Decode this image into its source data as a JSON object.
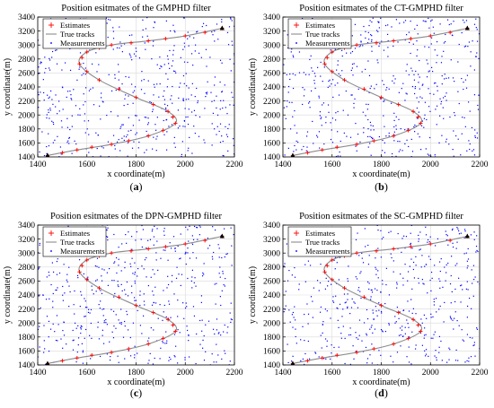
{
  "figure": {
    "panels": [
      {
        "title": "Position esitmates of the GMPHD filter",
        "caption_letter": "a"
      },
      {
        "title": "Position esitmates of the CT-GMPHD filter",
        "caption_letter": "b"
      },
      {
        "title": "Position esitmates of the DPN-GMPHD filter",
        "caption_letter": "c"
      },
      {
        "title": "Position esitmates of the SC-GMPHD filter",
        "caption_letter": "d"
      }
    ]
  },
  "colors": {
    "estimates": "#ff0000",
    "true_tracks": "#8c8c8c",
    "measurements": "#0000ff",
    "track_start_marker": "#000000"
  },
  "chart_data": [
    {
      "type": "scatter",
      "title": "Position esitmates of the GMPHD filter",
      "xlabel": "x coordinate(m)",
      "ylabel": "y coordinate(m)",
      "xlim": [
        1400,
        2200
      ],
      "ylim": [
        1400,
        3400
      ],
      "xticks": [
        1400,
        1600,
        1800,
        2000,
        2200
      ],
      "yticks": [
        1400,
        1600,
        1800,
        2000,
        2200,
        2400,
        2600,
        2800,
        3000,
        3200,
        3400
      ],
      "grid": true,
      "legend": {
        "placement": "top-left",
        "entries": [
          "Estimates",
          "True tracks",
          "Measurements"
        ]
      },
      "series": [
        {
          "name": "True tracks",
          "style": "line",
          "x": [
            1440,
            1560,
            1700,
            1850,
            1960,
            1930,
            1800,
            1650,
            1570,
            1600,
            1700,
            1850,
            2000,
            2150
          ],
          "y": [
            1420,
            1500,
            1580,
            1700,
            1880,
            2050,
            2250,
            2500,
            2730,
            2900,
            3000,
            3060,
            3130,
            3240
          ]
        },
        {
          "name": "Estimates",
          "style": "plus",
          "x": [
            1440,
            1500,
            1560,
            1620,
            1700,
            1770,
            1850,
            1910,
            1960,
            1950,
            1930,
            1870,
            1800,
            1730,
            1650,
            1600,
            1570,
            1580,
            1600,
            1650,
            1700,
            1780,
            1850,
            1920,
            2000,
            2080,
            2150
          ],
          "y": [
            1420,
            1460,
            1500,
            1540,
            1580,
            1630,
            1700,
            1780,
            1880,
            1970,
            2050,
            2150,
            2250,
            2370,
            2500,
            2620,
            2730,
            2820,
            2900,
            2960,
            3000,
            3030,
            3060,
            3090,
            3130,
            3180,
            3240
          ]
        },
        {
          "name": "Measurements",
          "style": "dot",
          "count": 520
        }
      ]
    },
    {
      "type": "scatter",
      "title": "Position esitmates of the CT-GMPHD filter",
      "xlabel": "x coordinate(m)",
      "ylabel": "y coordinate(m)",
      "xlim": [
        1400,
        2200
      ],
      "ylim": [
        1400,
        3400
      ],
      "xticks": [
        1400,
        1600,
        1800,
        2000,
        2200
      ],
      "yticks": [
        1400,
        1600,
        1800,
        2000,
        2200,
        2400,
        2600,
        2800,
        3000,
        3200,
        3400
      ],
      "grid": true,
      "legend": {
        "placement": "top-left",
        "entries": [
          "Estimates",
          "True tracks",
          "Measurements"
        ]
      },
      "series": [
        {
          "name": "True tracks",
          "style": "line",
          "x": [
            1440,
            1560,
            1700,
            1850,
            1960,
            1930,
            1800,
            1650,
            1570,
            1600,
            1700,
            1850,
            2000,
            2150
          ],
          "y": [
            1420,
            1500,
            1580,
            1700,
            1880,
            2050,
            2250,
            2500,
            2730,
            2900,
            3000,
            3060,
            3130,
            3240
          ]
        },
        {
          "name": "Estimates",
          "style": "plus",
          "x": [
            1440,
            1500,
            1560,
            1620,
            1700,
            1770,
            1850,
            1910,
            1960,
            1950,
            1930,
            1870,
            1800,
            1730,
            1650,
            1600,
            1570,
            1580,
            1600,
            1650,
            1700,
            1780,
            1850,
            1920,
            2000,
            2080,
            2150
          ],
          "y": [
            1420,
            1460,
            1500,
            1540,
            1580,
            1630,
            1700,
            1780,
            1880,
            1970,
            2050,
            2150,
            2250,
            2370,
            2500,
            2620,
            2730,
            2820,
            2900,
            2960,
            3000,
            3030,
            3060,
            3090,
            3130,
            3180,
            3240
          ]
        },
        {
          "name": "Measurements",
          "style": "dot",
          "count": 520
        }
      ]
    },
    {
      "type": "scatter",
      "title": "Position esitmates of the DPN-GMPHD filter",
      "xlabel": "x coordinate(m)",
      "ylabel": "y coordinate(m)",
      "xlim": [
        1400,
        2200
      ],
      "ylim": [
        1400,
        3400
      ],
      "xticks": [
        1400,
        1600,
        1800,
        2000,
        2200
      ],
      "yticks": [
        1400,
        1600,
        1800,
        2000,
        2200,
        2400,
        2600,
        2800,
        3000,
        3200,
        3400
      ],
      "grid": true,
      "legend": {
        "placement": "top-left",
        "entries": [
          "Estimates",
          "True tracks",
          "Measurements"
        ]
      },
      "series": [
        {
          "name": "True tracks",
          "style": "line",
          "x": [
            1440,
            1560,
            1700,
            1850,
            1960,
            1930,
            1800,
            1650,
            1570,
            1600,
            1700,
            1850,
            2000,
            2150
          ],
          "y": [
            1420,
            1500,
            1580,
            1700,
            1880,
            2050,
            2250,
            2500,
            2730,
            2900,
            3000,
            3060,
            3130,
            3240
          ]
        },
        {
          "name": "Estimates",
          "style": "plus",
          "x": [
            1440,
            1500,
            1560,
            1620,
            1700,
            1770,
            1850,
            1910,
            1960,
            1950,
            1930,
            1870,
            1800,
            1730,
            1650,
            1600,
            1570,
            1580,
            1600,
            1650,
            1700,
            1780,
            1850,
            1920,
            2000,
            2080,
            2150
          ],
          "y": [
            1420,
            1460,
            1500,
            1540,
            1580,
            1630,
            1700,
            1780,
            1880,
            1970,
            2050,
            2150,
            2250,
            2370,
            2500,
            2620,
            2730,
            2820,
            2900,
            2960,
            3000,
            3030,
            3060,
            3090,
            3130,
            3180,
            3240
          ]
        },
        {
          "name": "Measurements",
          "style": "dot",
          "count": 520
        }
      ]
    },
    {
      "type": "scatter",
      "title": "Position esitmates of the SC-GMPHD filter",
      "xlabel": "x coordinate(m)",
      "ylabel": "y coordinate(m)",
      "xlim": [
        1400,
        2200
      ],
      "ylim": [
        1400,
        3400
      ],
      "xticks": [
        1400,
        1600,
        1800,
        2000,
        2200
      ],
      "yticks": [
        1400,
        1600,
        1800,
        2000,
        2200,
        2400,
        2600,
        2800,
        3000,
        3200,
        3400
      ],
      "grid": true,
      "legend": {
        "placement": "top-left",
        "entries": [
          "Estimates",
          "True tracks",
          "Measurements"
        ]
      },
      "series": [
        {
          "name": "True tracks",
          "style": "line",
          "x": [
            1440,
            1560,
            1700,
            1850,
            1960,
            1930,
            1800,
            1650,
            1570,
            1600,
            1700,
            1850,
            2000,
            2150
          ],
          "y": [
            1420,
            1500,
            1580,
            1700,
            1880,
            2050,
            2250,
            2500,
            2730,
            2900,
            3000,
            3060,
            3130,
            3240
          ]
        },
        {
          "name": "Estimates",
          "style": "plus",
          "x": [
            1440,
            1500,
            1560,
            1620,
            1700,
            1770,
            1850,
            1910,
            1960,
            1950,
            1930,
            1870,
            1800,
            1730,
            1650,
            1600,
            1570,
            1580,
            1600,
            1650,
            1700,
            1780,
            1850,
            1920,
            2000,
            2080,
            2150
          ],
          "y": [
            1420,
            1460,
            1500,
            1540,
            1580,
            1630,
            1700,
            1780,
            1880,
            1970,
            2050,
            2150,
            2250,
            2370,
            2500,
            2620,
            2730,
            2820,
            2900,
            2960,
            3000,
            3030,
            3060,
            3090,
            3130,
            3180,
            3240
          ]
        },
        {
          "name": "Measurements",
          "style": "dot",
          "count": 520
        }
      ]
    }
  ]
}
